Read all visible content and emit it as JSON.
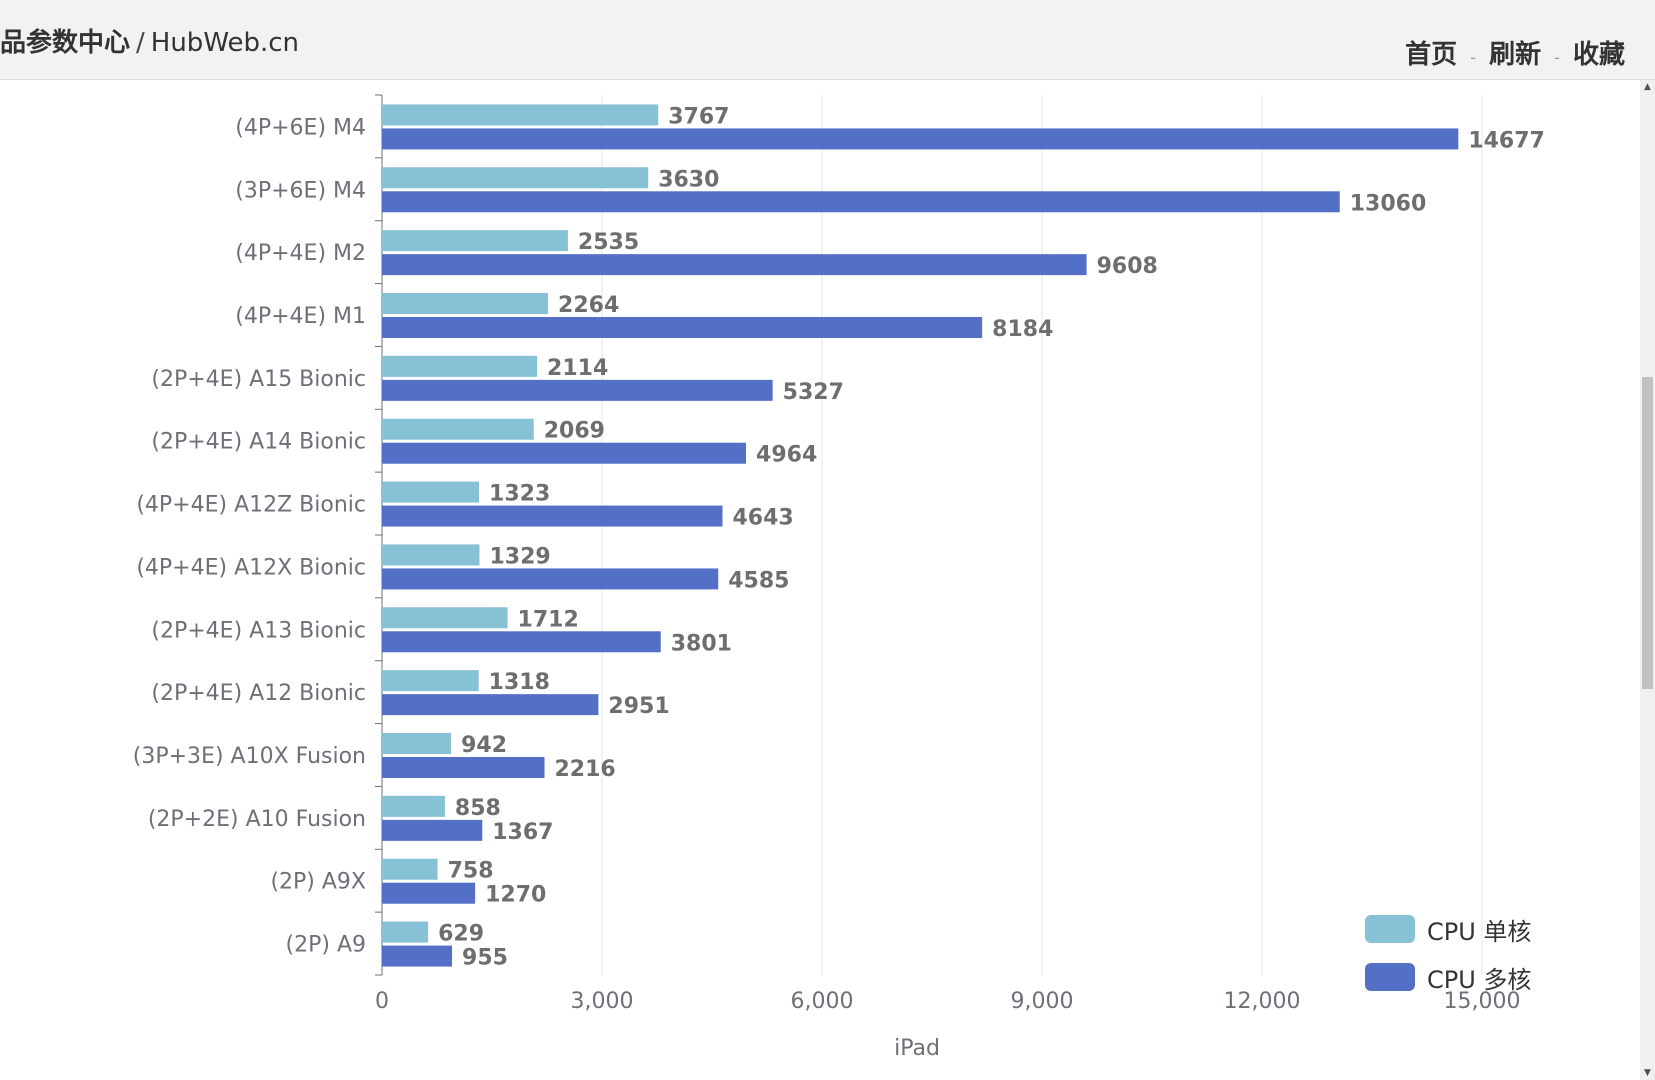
{
  "header": {
    "site_name": "品参数中心",
    "site_separator": "/",
    "site_domain": "HubWeb.cn",
    "nav": [
      {
        "label": "首页"
      },
      {
        "label": "刷新"
      },
      {
        "label": "收藏"
      }
    ],
    "nav_separator": "-"
  },
  "chart_data": {
    "type": "bar",
    "orientation": "horizontal",
    "xlabel": "iPad",
    "ylabel": "",
    "xlim": [
      0,
      15000
    ],
    "xticks": [
      0,
      3000,
      6000,
      9000,
      12000,
      15000
    ],
    "xtick_labels": [
      "0",
      "3,000",
      "6,000",
      "9,000",
      "12,000",
      "15,000"
    ],
    "grid": true,
    "legend_position": "bottom-right",
    "categories": [
      "(4P+6E) M4",
      "(3P+6E) M4",
      "(4P+4E) M2",
      "(4P+4E) M1",
      "(2P+4E) A15 Bionic",
      "(2P+4E) A14 Bionic",
      "(4P+4E) A12Z Bionic",
      "(4P+4E) A12X Bionic",
      "(2P+4E) A13 Bionic",
      "(2P+4E) A12 Bionic",
      "(3P+3E) A10X Fusion",
      "(2P+2E) A10 Fusion",
      "(2P) A9X",
      "(2P) A9"
    ],
    "series": [
      {
        "name": "CPU 单核",
        "color": "#86c1d6",
        "values": [
          3767,
          3630,
          2535,
          2264,
          2114,
          2069,
          1323,
          1329,
          1712,
          1318,
          942,
          858,
          758,
          629
        ]
      },
      {
        "name": "CPU 多核",
        "color": "#5470c6",
        "values": [
          14677,
          13060,
          9608,
          8184,
          5327,
          4964,
          4643,
          4585,
          3801,
          2951,
          2216,
          1367,
          1270,
          955
        ]
      }
    ]
  }
}
